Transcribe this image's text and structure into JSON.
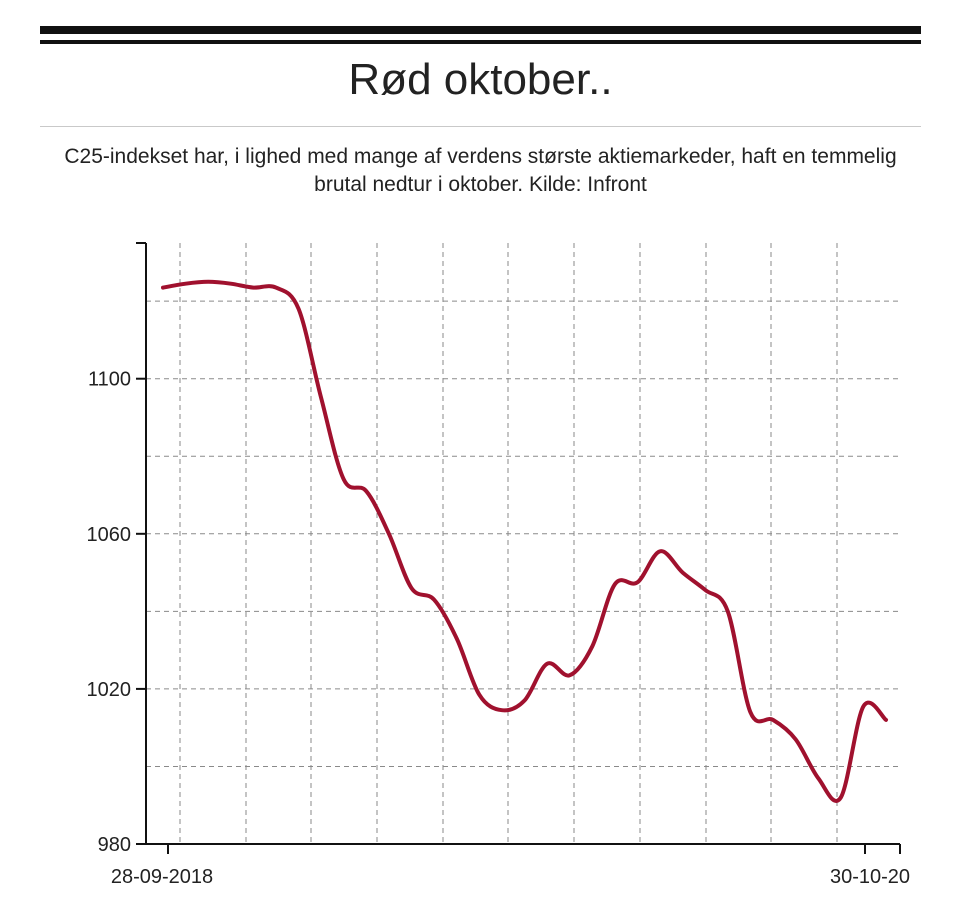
{
  "header": {
    "title": "Rød oktober..",
    "subtitle": "C25-indekset har, i lighed med mange af verdens største aktiemarkeder, haft en temmelig brutal nedtur i oktober. Kilde: Infront"
  },
  "colors": {
    "line": "#a0112e",
    "grid": "#8a8a8a",
    "axis": "#111111",
    "rules": "#111111"
  },
  "chart_data": {
    "type": "line",
    "title": "Rød oktober..",
    "subtitle": "C25-indekset har, i lighed med mange af verdens største aktiemarkeder, haft en temmelig brutal nedtur i oktober. Kilde: Infront",
    "xlabel": "",
    "ylabel": "",
    "x_tick_labels": [
      "28-09-2018",
      "30-10-20"
    ],
    "y_ticks": [
      980,
      1020,
      1060,
      1100
    ],
    "ylim": [
      980,
      1135
    ],
    "grid": true,
    "legend": "none",
    "series": [
      {
        "values": [
          1123.5,
          1124.5,
          1125.0,
          1124.5,
          1123.5,
          1123.5,
          1118.0,
          1095.0,
          1074.0,
          1071.0,
          1060.0,
          1046.0,
          1043.0,
          1033.0,
          1018.5,
          1014.5,
          1017.0,
          1026.5,
          1023.5,
          1031.0,
          1047.0,
          1047.5,
          1055.5,
          1050.0,
          1045.5,
          1040.0,
          1014.0,
          1012.0,
          1007.0,
          997.0,
          992.0,
          1015.5,
          1012.0
        ]
      }
    ]
  }
}
